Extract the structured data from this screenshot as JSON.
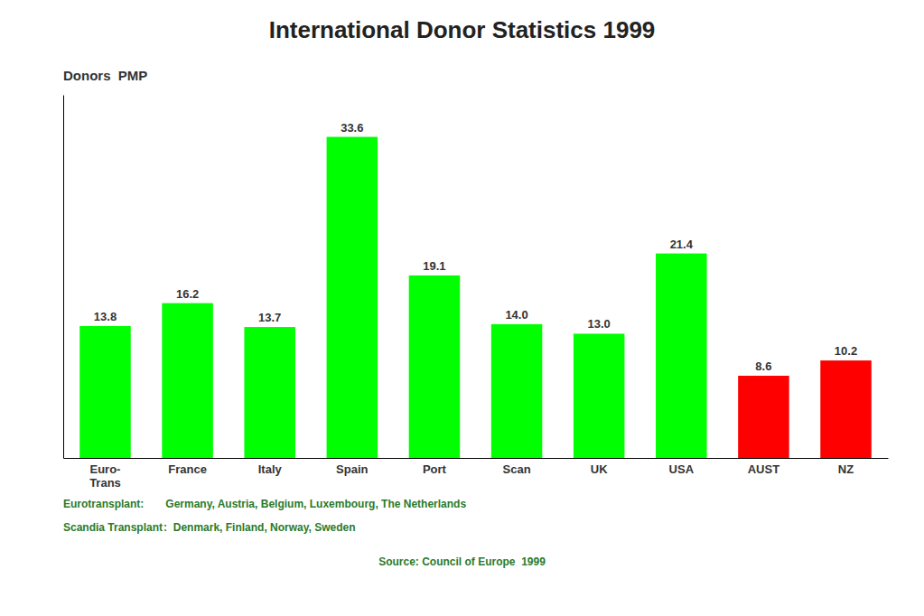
{
  "chart_data": {
    "type": "bar",
    "title": "International Donor Statistics 1999",
    "ylabel": "Donors  PMP",
    "categories": [
      "Euro-\nTrans",
      "France",
      "Italy",
      "Spain",
      "Port",
      "Scan",
      "UK",
      "USA",
      "AUST",
      "NZ"
    ],
    "values": [
      13.8,
      16.2,
      13.7,
      33.6,
      19.1,
      14.0,
      13.0,
      21.4,
      8.6,
      10.2
    ],
    "value_labels": [
      "13.8",
      "16.2",
      "13.7",
      "33.6",
      "19.1",
      "14.0",
      "13.0",
      "21.4",
      "8.6",
      "10.2"
    ],
    "colors": [
      "#00FF00",
      "#00FF00",
      "#00FF00",
      "#00FF00",
      "#00FF00",
      "#00FF00",
      "#00FF00",
      "#00FF00",
      "#FF0000",
      "#FF0000"
    ],
    "ylim": [
      0,
      38
    ],
    "data_labels": true,
    "tick_labels": "x",
    "grid": false,
    "annotations": [
      "Eurotransplant:",
      "Germany, Austria, Belgium, Luxembourg, The Netherlands",
      "Scandia Transplant",
      ":  Denmark, Finland, Norway, Sweden",
      "Source: Council of Europe  1999"
    ]
  }
}
